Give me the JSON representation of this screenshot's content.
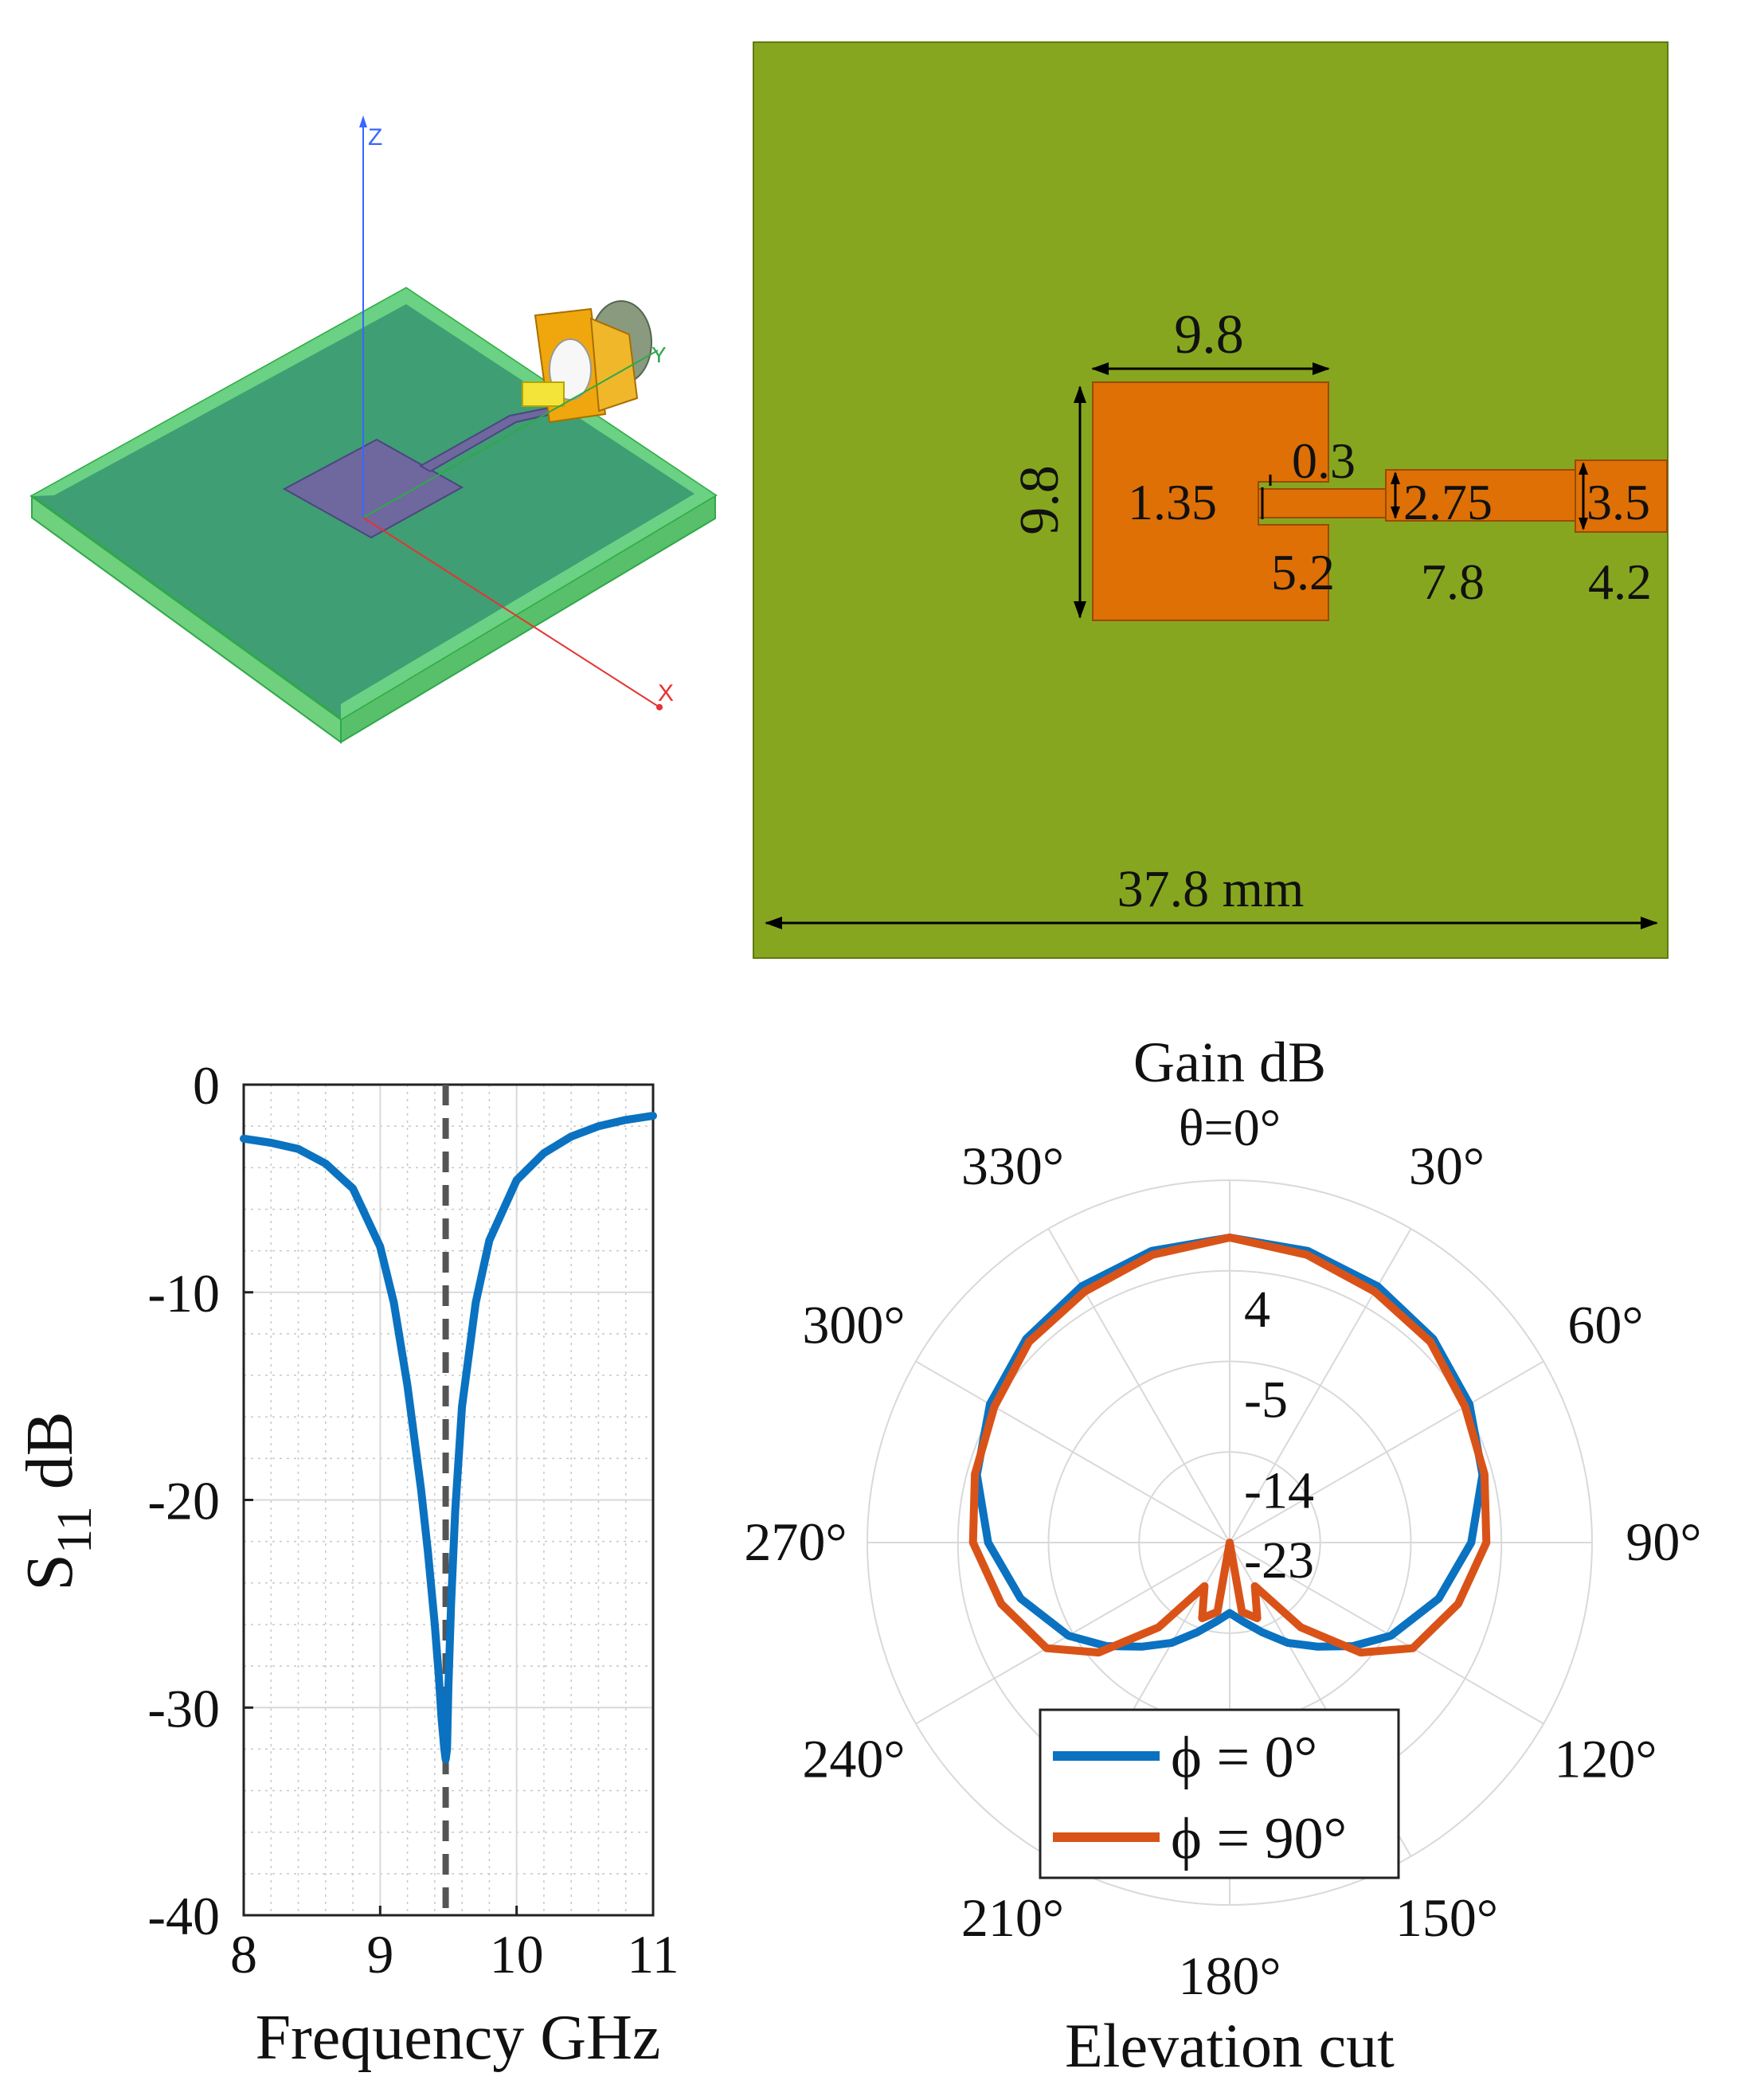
{
  "colors": {
    "substrate": "#87a61f",
    "patch": "#de7006",
    "series_phi0": "#0a72c0",
    "series_phi90": "#d95319",
    "marker_line": "#555555",
    "grid": "#d9d9d9"
  },
  "model3d": {
    "axes": {
      "z": "Z",
      "y": "Y",
      "x": "X"
    }
  },
  "layout_dims": {
    "patch_width": "9.8",
    "patch_length": "9.8",
    "gap_width": "0.3",
    "inset_width": "1.35",
    "inset_depth": "5.2",
    "line1_width": "2.75",
    "line1_length": "7.8",
    "line2_width": "3.5",
    "line2_length": "4.2",
    "board_width": "37.8 mm"
  },
  "chart_data": [
    {
      "type": "line",
      "title": "",
      "xlabel": "Frequency GHz",
      "ylabel_main": "S",
      "ylabel_sub": "11",
      "ylabel_unit": "dB",
      "xlim": [
        8,
        11
      ],
      "ylim": [
        -40,
        0
      ],
      "xticks": [
        8,
        9,
        10,
        11
      ],
      "yticks": [
        0,
        -10,
        -20,
        -30,
        -40
      ],
      "xtick_labels": [
        "8",
        "9",
        "10",
        "11"
      ],
      "ytick_labels": [
        "0",
        "-10",
        "-20",
        "-30",
        "-40"
      ],
      "grid": true,
      "minor_grid": true,
      "resonance_marker_x": 9.48,
      "series": [
        {
          "name": "S11",
          "x": [
            8.0,
            8.2,
            8.4,
            8.6,
            8.8,
            9.0,
            9.1,
            9.2,
            9.3,
            9.35,
            9.4,
            9.43,
            9.45,
            9.47,
            9.48,
            9.49,
            9.5,
            9.52,
            9.55,
            9.6,
            9.7,
            9.8,
            10.0,
            10.2,
            10.4,
            10.6,
            10.8,
            11.0
          ],
          "y": [
            -2.6,
            -2.8,
            -3.1,
            -3.8,
            -5.0,
            -7.8,
            -10.5,
            -14.5,
            -19.5,
            -22.5,
            -26.0,
            -28.5,
            -30.5,
            -32.0,
            -32.5,
            -32.0,
            -29.0,
            -25.0,
            -20.5,
            -15.5,
            -10.5,
            -7.5,
            -4.6,
            -3.3,
            -2.5,
            -2.0,
            -1.7,
            -1.5
          ]
        }
      ]
    },
    {
      "type": "polar",
      "title": "Gain dB",
      "angle_label": "θ=0°",
      "xlabel": "Elevation cut",
      "rlim": [
        -23,
        13
      ],
      "rticks": [
        4,
        -5,
        -14,
        -23
      ],
      "rtick_labels": [
        "4",
        "-5",
        "-14",
        "-23"
      ],
      "angle_ticks": [
        30,
        60,
        90,
        120,
        150,
        180,
        210,
        240,
        270,
        300,
        330
      ],
      "angle_tick_labels": [
        "30°",
        "60°",
        "90°",
        "120°",
        "150°",
        "180°",
        "210°",
        "240°",
        "270°",
        "300°",
        "330°"
      ],
      "theta_deg": [
        0,
        15,
        30,
        45,
        60,
        75,
        90,
        105,
        120,
        130,
        140,
        150,
        160,
        170,
        180,
        190,
        200,
        210,
        220,
        230,
        240,
        255,
        270,
        285,
        300,
        315,
        330,
        345,
        360
      ],
      "series": [
        {
          "name": "ϕ = 0°",
          "r": [
            7.3,
            7.0,
            6.4,
            5.6,
            4.5,
            3.0,
            1.0,
            -1.5,
            -4.5,
            -7.0,
            -9.5,
            -11.5,
            -13.5,
            -15.0,
            -16.0,
            -15.0,
            -13.5,
            -11.5,
            -9.5,
            -7.0,
            -4.5,
            -1.5,
            1.0,
            3.0,
            4.5,
            5.6,
            6.4,
            7.0,
            7.3
          ]
        },
        {
          "name": "ϕ = 90°",
          "r": [
            7.3,
            6.6,
            5.8,
            5.2,
            4.0,
            3.2,
            2.5,
            0.5,
            -2.0,
            -6.0,
            -12.0,
            -18.0,
            -15.0,
            -16.0,
            -23.0,
            -16.0,
            -15.0,
            -18.0,
            -12.0,
            -6.0,
            -2.0,
            0.5,
            2.5,
            3.2,
            4.0,
            5.2,
            5.8,
            6.6,
            7.3
          ]
        }
      ],
      "legend": {
        "placement": "bottom",
        "entries": [
          "ϕ =  0°",
          "ϕ = 90°"
        ]
      }
    }
  ]
}
